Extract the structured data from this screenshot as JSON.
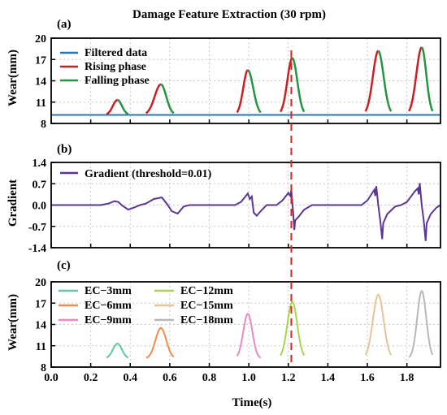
{
  "figure_title": "Damage Feature Extraction (30 rpm)",
  "colors": {
    "filtered": "#2e74b8",
    "rising": "#cc1f24",
    "falling": "#279443",
    "gradient": "#5a3795",
    "threshold_line": "#e8221f",
    "panel_label": "#1f1fd6",
    "ec3": "#5ec7a6",
    "ec6": "#f58a4f",
    "ec9": "#e98ac2",
    "ec12": "#a9d450",
    "ec15": "#e6c592",
    "ec18": "#b8b8b8"
  },
  "chart_data": [
    {
      "panel_label": "(a)",
      "type": "line",
      "ylabel": "Wear(mm)",
      "xlim": [
        0,
        1.97
      ],
      "ylim": [
        8,
        20
      ],
      "yticks": [
        "8",
        "11",
        "14",
        "17",
        "20"
      ],
      "grid": true,
      "legend_position": "top-left",
      "baseline": 9.2,
      "series": [
        {
          "name": "Filtered data",
          "color_key": "filtered",
          "values": [
            [
              0.0,
              9.2
            ],
            [
              1.97,
              9.2
            ]
          ]
        },
        {
          "name": "Rising phase",
          "color_key": "rising"
        },
        {
          "name": "Falling phase",
          "color_key": "falling"
        }
      ],
      "peaks": [
        {
          "peak_x": 0.335,
          "peak_y": 11.3,
          "rise_start_x": 0.28,
          "fall_end_x": 0.39
        },
        {
          "peak_x": 0.555,
          "peak_y": 13.5,
          "rise_start_x": 0.48,
          "fall_end_x": 0.62
        },
        {
          "peak_x": 0.995,
          "peak_y": 15.5,
          "rise_start_x": 0.94,
          "fall_end_x": 1.06
        },
        {
          "peak_x": 1.22,
          "peak_y": 17.2,
          "rise_start_x": 1.16,
          "fall_end_x": 1.28
        },
        {
          "peak_x": 1.655,
          "peak_y": 18.2,
          "rise_start_x": 1.59,
          "fall_end_x": 1.72
        },
        {
          "peak_x": 1.875,
          "peak_y": 18.7,
          "rise_start_x": 1.81,
          "fall_end_x": 1.93
        }
      ]
    },
    {
      "panel_label": "(b)",
      "type": "line",
      "ylabel": "Gradient",
      "xlim": [
        0,
        1.97
      ],
      "ylim": [
        -1.4,
        1.4
      ],
      "yticks": [
        "-1.4",
        "-0.7",
        "0.0",
        "0.7",
        "1.4"
      ],
      "grid": true,
      "legend_position": "top-left",
      "series": [
        {
          "name": "Gradient (threshold=0.01)",
          "color_key": "gradient",
          "values": [
            [
              0.0,
              0.0
            ],
            [
              0.25,
              0.0
            ],
            [
              0.29,
              0.05
            ],
            [
              0.32,
              0.13
            ],
            [
              0.34,
              0.1
            ],
            [
              0.36,
              -0.02
            ],
            [
              0.39,
              -0.15
            ],
            [
              0.42,
              -0.08
            ],
            [
              0.45,
              0.0
            ],
            [
              0.48,
              0.05
            ],
            [
              0.52,
              0.2
            ],
            [
              0.56,
              0.25
            ],
            [
              0.59,
              0.0
            ],
            [
              0.61,
              -0.2
            ],
            [
              0.64,
              -0.28
            ],
            [
              0.67,
              -0.05
            ],
            [
              0.7,
              0.0
            ],
            [
              0.93,
              0.0
            ],
            [
              0.96,
              0.1
            ],
            [
              0.985,
              0.3
            ],
            [
              0.995,
              0.38
            ],
            [
              1.005,
              0.2
            ],
            [
              1.015,
              0.28
            ],
            [
              1.025,
              -0.25
            ],
            [
              1.04,
              -0.35
            ],
            [
              1.06,
              -0.2
            ],
            [
              1.09,
              0.0
            ],
            [
              1.14,
              0.0
            ],
            [
              1.17,
              0.15
            ],
            [
              1.2,
              0.4
            ],
            [
              1.21,
              0.3
            ],
            [
              1.215,
              0.5
            ],
            [
              1.225,
              -0.3
            ],
            [
              1.23,
              -0.82
            ],
            [
              1.235,
              -0.5
            ],
            [
              1.25,
              -0.4
            ],
            [
              1.28,
              -0.15
            ],
            [
              1.32,
              0.0
            ],
            [
              1.57,
              0.0
            ],
            [
              1.6,
              0.15
            ],
            [
              1.625,
              0.4
            ],
            [
              1.635,
              0.5
            ],
            [
              1.64,
              0.3
            ],
            [
              1.645,
              0.62
            ],
            [
              1.655,
              0.0
            ],
            [
              1.665,
              -0.5
            ],
            [
              1.675,
              -1.12
            ],
            [
              1.68,
              -0.6
            ],
            [
              1.7,
              -0.3
            ],
            [
              1.74,
              -0.05
            ],
            [
              1.77,
              0.0
            ],
            [
              1.8,
              0.1
            ],
            [
              1.84,
              0.45
            ],
            [
              1.855,
              0.55
            ],
            [
              1.86,
              0.35
            ],
            [
              1.865,
              0.72
            ],
            [
              1.875,
              0.0
            ],
            [
              1.885,
              -0.5
            ],
            [
              1.895,
              -1.18
            ],
            [
              1.9,
              -0.6
            ],
            [
              1.92,
              -0.3
            ],
            [
              1.95,
              -0.08
            ],
            [
              1.97,
              0.0
            ]
          ]
        }
      ]
    },
    {
      "panel_label": "(c)",
      "type": "line",
      "ylabel": "Wear(mm)",
      "xlabel": "Time(s)",
      "xlim": [
        0,
        1.97
      ],
      "xticks": [
        "0.0",
        "0.2",
        "0.4",
        "0.6",
        "0.8",
        "1.0",
        "1.2",
        "1.4",
        "1.6",
        "1.8"
      ],
      "ylim": [
        8,
        20
      ],
      "yticks": [
        "8",
        "11",
        "14",
        "17",
        "20"
      ],
      "grid": true,
      "legend_position": "top-left",
      "baseline": 9.2,
      "series": [
        {
          "name": "EC−3mm",
          "color_key": "ec3",
          "peak_x": 0.335,
          "peak_y": 11.3,
          "rise_start_x": 0.28,
          "fall_end_x": 0.39
        },
        {
          "name": "EC−6mm",
          "color_key": "ec6",
          "peak_x": 0.555,
          "peak_y": 13.5,
          "rise_start_x": 0.48,
          "fall_end_x": 0.62
        },
        {
          "name": "EC−9mm",
          "color_key": "ec9",
          "peak_x": 0.995,
          "peak_y": 15.5,
          "rise_start_x": 0.94,
          "fall_end_x": 1.06
        },
        {
          "name": "EC−12mm",
          "color_key": "ec12",
          "peak_x": 1.22,
          "peak_y": 17.2,
          "rise_start_x": 1.16,
          "fall_end_x": 1.28
        },
        {
          "name": "EC−15mm",
          "color_key": "ec15",
          "peak_x": 1.655,
          "peak_y": 18.2,
          "rise_start_x": 1.59,
          "fall_end_x": 1.72
        },
        {
          "name": "EC−18mm",
          "color_key": "ec18",
          "peak_x": 1.875,
          "peak_y": 18.7,
          "rise_start_x": 1.81,
          "fall_end_x": 1.93
        }
      ]
    }
  ],
  "threshold_marker_x": 1.215
}
